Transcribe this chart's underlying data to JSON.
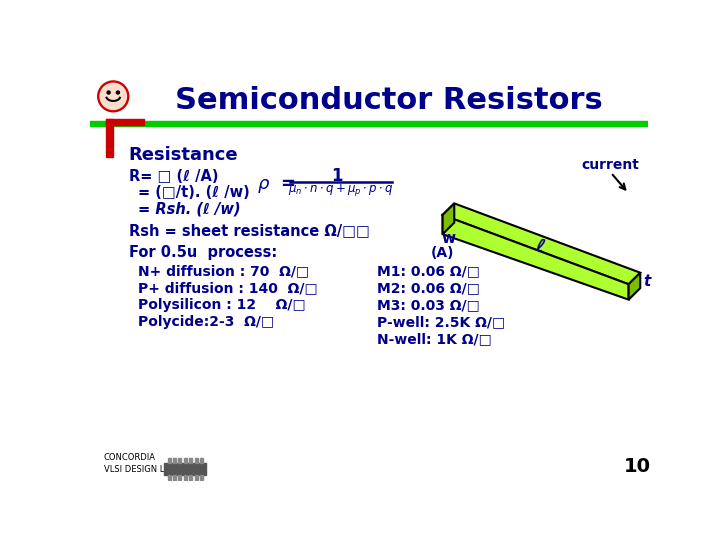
{
  "title": "Semiconductor Resistors",
  "title_color": "#00008B",
  "title_fontsize": 22,
  "bg_color": "#FFFFFF",
  "header_bar_color": "#00CC00",
  "left_bar_color": "#CC0000",
  "resistance_label": "Resistance",
  "formula_line1": "R= □ (ℓ /A)",
  "formula_line2": "= (□/t). (ℓ /w)",
  "formula_line3": "= Rsh. (ℓ /w)",
  "rsh_text": "Rsh = sheet resistance Ω/□□",
  "process_title": "For 0.5u  process:",
  "col1": [
    "N+ diffusion : 70  Ω/□",
    "P+ diffusion : 140  Ω/□",
    "Polysilicon : 12    Ω/□",
    "Polycide:2-3  Ω/□"
  ],
  "col2": [
    "M1: 0.06 Ω/□",
    "M2: 0.06 Ω/□",
    "M3: 0.03 Ω/□",
    "P-well: 2.5K Ω/□",
    "N-well: 1K Ω/□"
  ],
  "text_color": "#00008B",
  "page_number": "10",
  "current_label": "current",
  "dim_l": "ℓ",
  "dim_w": "w",
  "dim_t": "t",
  "area_label": "(A)",
  "slab_color_top": "#ADFF2F",
  "slab_color_front": "#ADFF2F",
  "slab_color_right": "#7BBF00"
}
